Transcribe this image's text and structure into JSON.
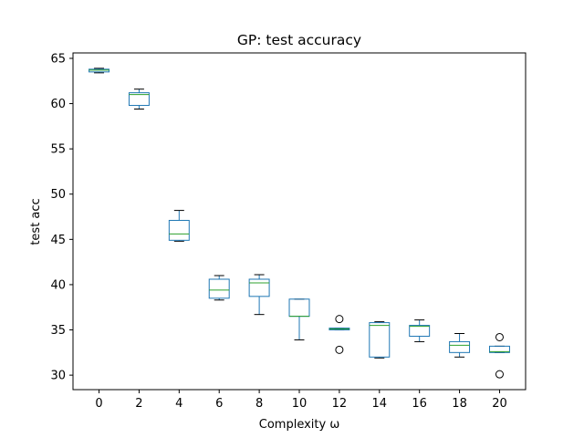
{
  "chart_data": {
    "type": "box",
    "title": "GP: test accuracy",
    "xlabel": "Complexity ω",
    "ylabel": "test acc",
    "categories": [
      "0",
      "2",
      "4",
      "6",
      "8",
      "10",
      "12",
      "14",
      "16",
      "18",
      "20"
    ],
    "yticks": [
      30,
      35,
      40,
      45,
      50,
      55,
      60,
      65
    ],
    "ylim": [
      28.4,
      65.6
    ],
    "grid": false,
    "boxes": [
      {
        "category": "0",
        "whisker_low": 63.4,
        "q1": 63.5,
        "median": 63.7,
        "q3": 63.8,
        "whisker_high": 63.9,
        "outliers": []
      },
      {
        "category": "2",
        "whisker_low": 59.4,
        "q1": 59.8,
        "median": 61.0,
        "q3": 61.2,
        "whisker_high": 61.6,
        "outliers": []
      },
      {
        "category": "4",
        "whisker_low": 44.8,
        "q1": 44.9,
        "median": 45.6,
        "q3": 47.1,
        "whisker_high": 48.2,
        "outliers": []
      },
      {
        "category": "6",
        "whisker_low": 38.3,
        "q1": 38.5,
        "median": 39.4,
        "q3": 40.6,
        "whisker_high": 41.0,
        "outliers": []
      },
      {
        "category": "8",
        "whisker_low": 36.7,
        "q1": 38.7,
        "median": 40.2,
        "q3": 40.6,
        "whisker_high": 41.1,
        "outliers": []
      },
      {
        "category": "10",
        "whisker_low": 33.9,
        "q1": 36.5,
        "median": 36.5,
        "q3": 38.4,
        "whisker_high": 38.4,
        "outliers": []
      },
      {
        "category": "12",
        "whisker_low": 35.0,
        "q1": 35.0,
        "median": 35.1,
        "q3": 35.2,
        "whisker_high": 35.2,
        "outliers": [
          36.2,
          32.8
        ]
      },
      {
        "category": "14",
        "whisker_low": 31.9,
        "q1": 32.0,
        "median": 35.5,
        "q3": 35.8,
        "whisker_high": 35.9,
        "outliers": []
      },
      {
        "category": "16",
        "whisker_low": 33.7,
        "q1": 34.3,
        "median": 35.4,
        "q3": 35.5,
        "whisker_high": 36.1,
        "outliers": []
      },
      {
        "category": "18",
        "whisker_low": 32.0,
        "q1": 32.5,
        "median": 33.3,
        "q3": 33.7,
        "whisker_high": 34.6,
        "outliers": []
      },
      {
        "category": "20",
        "whisker_low": 32.5,
        "q1": 32.5,
        "median": 32.6,
        "q3": 33.2,
        "whisker_high": 33.2,
        "outliers": [
          34.2,
          30.1
        ]
      }
    ],
    "colors": {
      "box": "#1f77b4",
      "median": "#2ca02c",
      "whisker": "#000000",
      "outlier": "#000000"
    }
  }
}
